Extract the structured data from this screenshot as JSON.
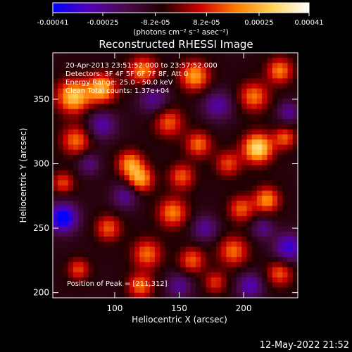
{
  "chart_data": {
    "type": "heatmap",
    "title": "Reconstructed RHESSI Image",
    "xlabel": "Heliocentric X (arcsec)",
    "ylabel": "Heliocentric Y (arcsec)",
    "xlim": [
      52,
      242
    ],
    "ylim": [
      196,
      386
    ],
    "xticks": [
      100,
      150,
      200
    ],
    "xtick_labels": [
      "100",
      "150",
      "200"
    ],
    "yticks": [
      200,
      250,
      300,
      350
    ],
    "ytick_labels": [
      "200",
      "250",
      "300",
      "350"
    ],
    "colorbar": {
      "vmin": -0.00041,
      "vmax": 0.00041,
      "ticks": [
        -0.00041,
        -0.00025,
        -8.2e-05,
        8.2e-05,
        0.00025,
        0.00041
      ],
      "tick_labels": [
        "-0.00041",
        "-0.00025",
        "-8.2e-05",
        "8.2e-05",
        "0.00025",
        "0.00041"
      ],
      "unit_label": "(photons cm⁻² s⁻¹ asec⁻²)",
      "colors": [
        "#0000ff",
        "#5500b5",
        "#4a0a4a",
        "#200000",
        "#c80000",
        "#ff7a00",
        "#ffd25a",
        "#ffffff"
      ]
    },
    "annotations": [
      "20-Apr-2013 23:51:52.000 to 23:57:52.000",
      "Detectors: 3F 4F 5F 6F 7F 8F, Att 0",
      "Energy Range: 25.0 - 50.0 keV",
      "Clean     Total counts: 1.37e+04"
    ],
    "peak_label": "Position of Peak = [211,312]",
    "peak": {
      "x": 211,
      "y": 312
    },
    "image_grid": {
      "nx": 48,
      "ny": 48,
      "blobs": [
        {
          "x": 68,
          "y": 352,
          "amp": 0.00036,
          "sigma": 9
        },
        {
          "x": 90,
          "y": 358,
          "amp": 0.00033,
          "sigma": 8
        },
        {
          "x": 122,
          "y": 372,
          "amp": 0.00026,
          "sigma": 8
        },
        {
          "x": 162,
          "y": 368,
          "amp": 0.0003,
          "sigma": 8
        },
        {
          "x": 208,
          "y": 352,
          "amp": 0.00025,
          "sigma": 8
        },
        {
          "x": 228,
          "y": 372,
          "amp": 0.00026,
          "sigma": 7
        },
        {
          "x": 142,
          "y": 332,
          "amp": 0.00022,
          "sigma": 8
        },
        {
          "x": 70,
          "y": 318,
          "amp": 0.00024,
          "sigma": 8
        },
        {
          "x": 112,
          "y": 300,
          "amp": 0.00028,
          "sigma": 7
        },
        {
          "x": 165,
          "y": 315,
          "amp": 0.00024,
          "sigma": 7
        },
        {
          "x": 211,
          "y": 312,
          "amp": 0.00041,
          "sigma": 8
        },
        {
          "x": 232,
          "y": 320,
          "amp": 0.00022,
          "sigma": 6
        },
        {
          "x": 120,
          "y": 288,
          "amp": 0.0003,
          "sigma": 7
        },
        {
          "x": 152,
          "y": 290,
          "amp": 0.00022,
          "sigma": 7
        },
        {
          "x": 188,
          "y": 300,
          "amp": 0.0002,
          "sigma": 7
        },
        {
          "x": 60,
          "y": 285,
          "amp": 0.0002,
          "sigma": 6
        },
        {
          "x": 145,
          "y": 262,
          "amp": 0.00026,
          "sigma": 8
        },
        {
          "x": 198,
          "y": 265,
          "amp": 0.00022,
          "sigma": 7
        },
        {
          "x": 218,
          "y": 272,
          "amp": 0.00028,
          "sigma": 7
        },
        {
          "x": 95,
          "y": 250,
          "amp": 0.00022,
          "sigma": 7
        },
        {
          "x": 125,
          "y": 230,
          "amp": 0.00024,
          "sigma": 8
        },
        {
          "x": 160,
          "y": 225,
          "amp": 0.00022,
          "sigma": 7
        },
        {
          "x": 192,
          "y": 232,
          "amp": 0.00024,
          "sigma": 8
        },
        {
          "x": 228,
          "y": 215,
          "amp": 0.00022,
          "sigma": 7
        },
        {
          "x": 72,
          "y": 218,
          "amp": 0.0002,
          "sigma": 6
        },
        {
          "x": 120,
          "y": 205,
          "amp": 0.00024,
          "sigma": 7
        },
        {
          "x": 178,
          "y": 208,
          "amp": 0.00018,
          "sigma": 6
        },
        {
          "x": 60,
          "y": 258,
          "amp": -0.00036,
          "sigma": 8
        },
        {
          "x": 108,
          "y": 275,
          "amp": -0.00018,
          "sigma": 7
        },
        {
          "x": 90,
          "y": 330,
          "amp": -0.0002,
          "sigma": 8
        },
        {
          "x": 130,
          "y": 350,
          "amp": -0.00018,
          "sigma": 8
        },
        {
          "x": 180,
          "y": 345,
          "amp": -0.0002,
          "sigma": 8
        },
        {
          "x": 235,
          "y": 235,
          "amp": -0.00026,
          "sigma": 8
        },
        {
          "x": 205,
          "y": 205,
          "amp": -0.00022,
          "sigma": 7
        },
        {
          "x": 150,
          "y": 205,
          "amp": -0.00018,
          "sigma": 7
        },
        {
          "x": 215,
          "y": 250,
          "amp": -0.00016,
          "sigma": 6
        },
        {
          "x": 170,
          "y": 250,
          "amp": -0.00018,
          "sigma": 7
        },
        {
          "x": 235,
          "y": 340,
          "amp": -0.00018,
          "sigma": 6
        },
        {
          "x": 80,
          "y": 300,
          "amp": -0.00016,
          "sigma": 6
        }
      ]
    }
  },
  "footer": {
    "timestamp": "12-May-2022 21:52"
  }
}
